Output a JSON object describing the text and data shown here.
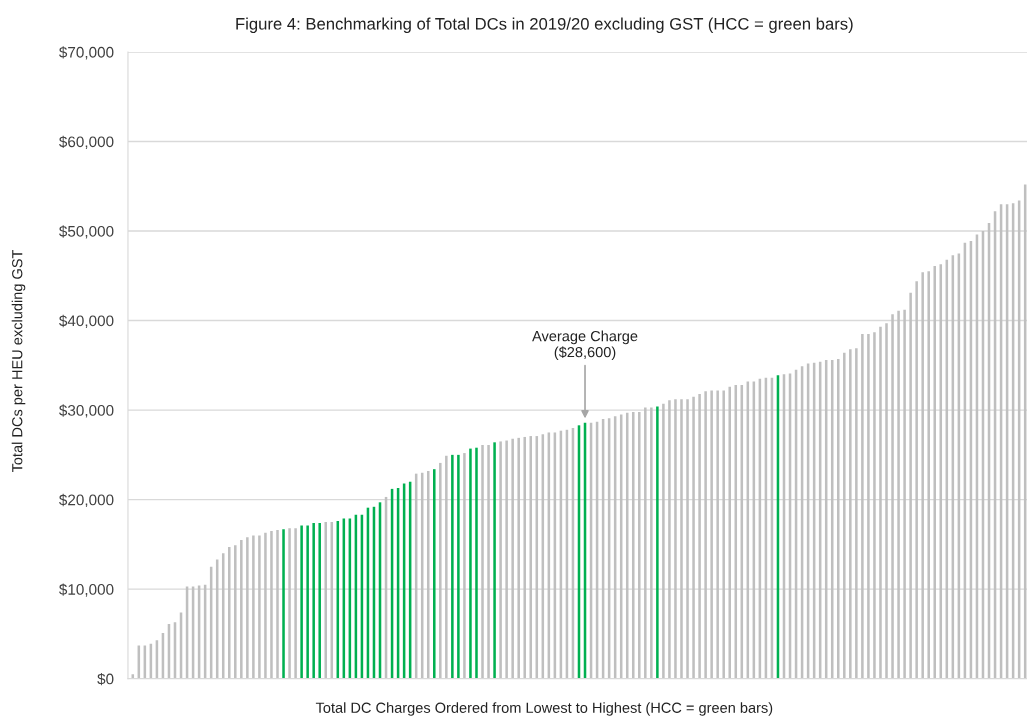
{
  "chart_data": {
    "type": "bar",
    "title": "Figure 4: Benchmarking of Total DCs in 2019/20 excluding GST (HCC = green bars)",
    "xlabel": "Total DC Charges Ordered from Lowest to Highest (HCC = green bars)",
    "ylabel": "Total DCs per HEU excluding GST",
    "categories": [
      null,
      null,
      null,
      null,
      null,
      null,
      null,
      null,
      null,
      null,
      null,
      null,
      null,
      null,
      null,
      null,
      null,
      null,
      null,
      null,
      null,
      null,
      null,
      null,
      null,
      null,
      null,
      null,
      null,
      null,
      null,
      null,
      null,
      null,
      null,
      null,
      null,
      null,
      null,
      null,
      null,
      null,
      null,
      null,
      null,
      null,
      null,
      null,
      null,
      null,
      null,
      null,
      null,
      null,
      null,
      null,
      null,
      null,
      null,
      null,
      null,
      null,
      null,
      null,
      null,
      null,
      null,
      null,
      null,
      null,
      null,
      null,
      null,
      null,
      null,
      null,
      null,
      null,
      null,
      null,
      null,
      null,
      null,
      null,
      null,
      null,
      null,
      null,
      null,
      null,
      null,
      null,
      null,
      null,
      null,
      null,
      null,
      null,
      null,
      null,
      null,
      null,
      null,
      null,
      null,
      null,
      null,
      null,
      null,
      null,
      null,
      null,
      null,
      null,
      null,
      null,
      null,
      null,
      null,
      null,
      null,
      null,
      null,
      null,
      null,
      null,
      null,
      null,
      null,
      null,
      null,
      null,
      null,
      null,
      null,
      null,
      null,
      null,
      null,
      null,
      null,
      null,
      null,
      null,
      null,
      null,
      null,
      null,
      null
    ],
    "values": [
      500,
      3700,
      3700,
      3900,
      4300,
      5100,
      6100,
      6300,
      7400,
      10300,
      10300,
      10400,
      10500,
      12500,
      13300,
      14000,
      14700,
      14900,
      15500,
      15800,
      16000,
      16000,
      16300,
      16500,
      16600,
      16700,
      16800,
      16800,
      17100,
      17100,
      17400,
      17400,
      17500,
      17500,
      17600,
      17900,
      17900,
      18300,
      18300,
      19100,
      19200,
      19700,
      20300,
      21200,
      21300,
      21800,
      22000,
      22900,
      23000,
      23200,
      23400,
      24100,
      24900,
      25000,
      25000,
      25200,
      25700,
      25800,
      26100,
      26100,
      26400,
      26500,
      26600,
      26800,
      26900,
      27000,
      27100,
      27100,
      27300,
      27500,
      27500,
      27700,
      27800,
      28000,
      28300,
      28600,
      28600,
      28700,
      29000,
      29100,
      29300,
      29500,
      29700,
      29800,
      29800,
      30300,
      30300,
      30400,
      30700,
      31100,
      31200,
      31200,
      31200,
      31500,
      31800,
      32100,
      32200,
      32200,
      32200,
      32600,
      32800,
      32800,
      33200,
      33200,
      33500,
      33600,
      33600,
      33900,
      34000,
      34100,
      34500,
      34900,
      35200,
      35300,
      35400,
      35600,
      35600,
      35700,
      36400,
      36800,
      36900,
      38500,
      38500,
      38700,
      39300,
      39700,
      40700,
      41100,
      41200,
      43100,
      44400,
      45400,
      45500,
      46100,
      46300,
      46800,
      47300,
      47500,
      48700,
      48900,
      49600,
      50000,
      50900,
      52200,
      53000,
      53000,
      53100,
      53400,
      55200
    ],
    "colors": [
      "#bfbfbf",
      "#bfbfbf",
      "#bfbfbf",
      "#bfbfbf",
      "#bfbfbf",
      "#bfbfbf",
      "#bfbfbf",
      "#bfbfbf",
      "#bfbfbf",
      "#bfbfbf",
      "#bfbfbf",
      "#bfbfbf",
      "#bfbfbf",
      "#bfbfbf",
      "#bfbfbf",
      "#bfbfbf",
      "#bfbfbf",
      "#bfbfbf",
      "#bfbfbf",
      "#bfbfbf",
      "#bfbfbf",
      "#bfbfbf",
      "#bfbfbf",
      "#bfbfbf",
      "#bfbfbf",
      "#00b050",
      "#bfbfbf",
      "#bfbfbf",
      "#00b050",
      "#00b050",
      "#00b050",
      "#00b050",
      "#bfbfbf",
      "#bfbfbf",
      "#00b050",
      "#00b050",
      "#00b050",
      "#00b050",
      "#00b050",
      "#00b050",
      "#00b050",
      "#00b050",
      "#bfbfbf",
      "#00b050",
      "#00b050",
      "#00b050",
      "#00b050",
      "#bfbfbf",
      "#bfbfbf",
      "#bfbfbf",
      "#00b050",
      "#bfbfbf",
      "#bfbfbf",
      "#00b050",
      "#00b050",
      "#bfbfbf",
      "#00b050",
      "#00b050",
      "#bfbfbf",
      "#bfbfbf",
      "#00b050",
      "#bfbfbf",
      "#bfbfbf",
      "#bfbfbf",
      "#bfbfbf",
      "#bfbfbf",
      "#bfbfbf",
      "#bfbfbf",
      "#bfbfbf",
      "#bfbfbf",
      "#bfbfbf",
      "#bfbfbf",
      "#bfbfbf",
      "#bfbfbf",
      "#00b050",
      "#00b050",
      "#bfbfbf",
      "#bfbfbf",
      "#bfbfbf",
      "#bfbfbf",
      "#bfbfbf",
      "#bfbfbf",
      "#bfbfbf",
      "#bfbfbf",
      "#bfbfbf",
      "#bfbfbf",
      "#bfbfbf",
      "#00b050",
      "#bfbfbf",
      "#bfbfbf",
      "#bfbfbf",
      "#bfbfbf",
      "#bfbfbf",
      "#bfbfbf",
      "#bfbfbf",
      "#bfbfbf",
      "#bfbfbf",
      "#bfbfbf",
      "#bfbfbf",
      "#bfbfbf",
      "#bfbfbf",
      "#bfbfbf",
      "#bfbfbf",
      "#bfbfbf",
      "#bfbfbf",
      "#bfbfbf",
      "#bfbfbf",
      "#00b050",
      "#bfbfbf",
      "#bfbfbf",
      "#bfbfbf",
      "#bfbfbf",
      "#bfbfbf",
      "#bfbfbf",
      "#bfbfbf",
      "#bfbfbf",
      "#bfbfbf",
      "#bfbfbf",
      "#bfbfbf",
      "#bfbfbf",
      "#bfbfbf",
      "#bfbfbf",
      "#bfbfbf",
      "#bfbfbf",
      "#bfbfbf",
      "#bfbfbf",
      "#bfbfbf",
      "#bfbfbf",
      "#bfbfbf",
      "#bfbfbf",
      "#bfbfbf",
      "#bfbfbf",
      "#bfbfbf",
      "#bfbfbf",
      "#bfbfbf",
      "#bfbfbf",
      "#bfbfbf",
      "#bfbfbf",
      "#bfbfbf",
      "#bfbfbf",
      "#bfbfbf",
      "#bfbfbf",
      "#bfbfbf",
      "#bfbfbf",
      "#bfbfbf",
      "#bfbfbf",
      "#bfbfbf",
      "#bfbfbf",
      "#bfbfbf"
    ],
    "ylim": [
      0,
      70000
    ],
    "yticks": [
      {
        "value": 0,
        "label": "$0"
      },
      {
        "value": 10000,
        "label": "$10,000"
      },
      {
        "value": 20000,
        "label": "$20,000"
      },
      {
        "value": 30000,
        "label": "$30,000"
      },
      {
        "value": 40000,
        "label": "$40,000"
      },
      {
        "value": 50000,
        "label": "$50,000"
      },
      {
        "value": 60000,
        "label": "$60,000"
      },
      {
        "value": 70000,
        "label": "$70,000"
      }
    ],
    "grid": "y",
    "tick_labels": "y",
    "annotations": [
      {
        "text": "Average Charge\n($28,600)",
        "y": 28600
      }
    ]
  }
}
